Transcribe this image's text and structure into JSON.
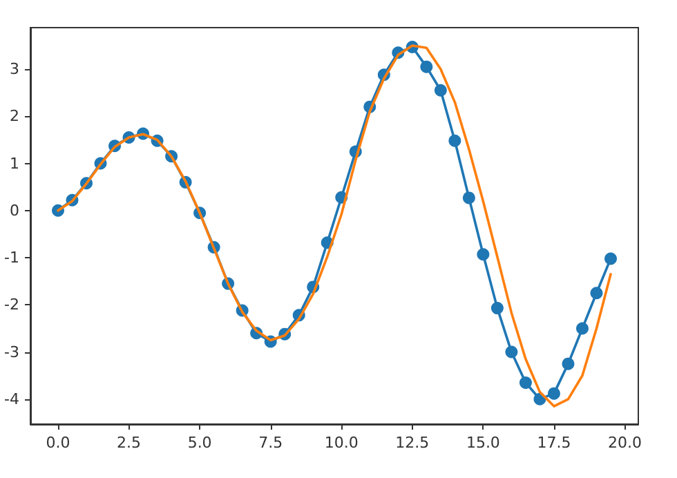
{
  "chart_data": {
    "type": "line",
    "x": [
      0,
      0.5,
      1,
      1.5,
      2,
      2.5,
      3,
      3.5,
      4,
      4.5,
      5,
      5.5,
      6,
      6.5,
      7,
      7.5,
      8,
      8.5,
      9,
      9.5,
      10,
      10.5,
      11,
      11.5,
      12,
      12.5,
      13,
      13.5,
      14,
      14.5,
      15,
      15.5,
      16,
      16.5,
      17,
      17.5,
      18,
      18.5,
      19,
      19.5
    ],
    "series": [
      {
        "color": "#1f77b4",
        "marker": "circle",
        "values": [
          0,
          0.22,
          0.58,
          1.0,
          1.37,
          1.55,
          1.63,
          1.48,
          1.15,
          0.6,
          -0.05,
          -0.78,
          -1.55,
          -2.12,
          -2.6,
          -2.78,
          -2.62,
          -2.22,
          -1.62,
          -0.68,
          0.28,
          1.25,
          2.2,
          2.88,
          3.35,
          3.47,
          3.05,
          2.55,
          1.48,
          0.27,
          -0.93,
          -2.07,
          -3.0,
          -3.65,
          -4.0,
          -3.88,
          -3.25,
          -2.5,
          -1.75,
          -1.02
        ]
      },
      {
        "color": "#ff7f0e",
        "marker": "none",
        "values": [
          0,
          0.2,
          0.57,
          0.98,
          1.35,
          1.55,
          1.62,
          1.5,
          1.15,
          0.62,
          -0.05,
          -0.8,
          -1.55,
          -2.15,
          -2.55,
          -2.75,
          -2.65,
          -2.3,
          -1.77,
          -0.98,
          -0.08,
          1.07,
          2.1,
          2.8,
          3.3,
          3.5,
          3.45,
          3.0,
          2.3,
          1.3,
          0.2,
          -0.98,
          -2.17,
          -3.15,
          -3.85,
          -4.15,
          -4.0,
          -3.5,
          -2.5,
          -1.35
        ]
      }
    ],
    "xlim": [
      -0.975,
      20.475
    ],
    "xticks": [
      {
        "value": 0,
        "label": "0.0"
      },
      {
        "value": 2.5,
        "label": "2.5"
      },
      {
        "value": 5,
        "label": "5.0"
      },
      {
        "value": 7.5,
        "label": "7.5"
      },
      {
        "value": 10,
        "label": "10.0"
      },
      {
        "value": 12.5,
        "label": "12.5"
      },
      {
        "value": 15,
        "label": "15.0"
      },
      {
        "value": 17.5,
        "label": "17.5"
      },
      {
        "value": 20,
        "label": "20.0"
      }
    ],
    "ylim": [
      -4.53,
      3.88
    ],
    "yticks": [
      -4,
      -3,
      -2,
      -1,
      0,
      1,
      2,
      3
    ],
    "line_style": "solid"
  }
}
